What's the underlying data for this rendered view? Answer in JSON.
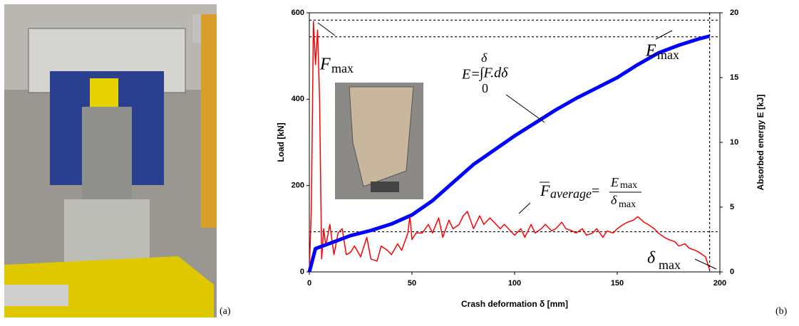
{
  "panel_labels": [
    "(a)",
    "(b)"
  ],
  "chart_data": {
    "type": "line",
    "xlabel": "Crash deformation δ [mm]",
    "ylabel": "Load [kN]",
    "y2label": "Absorbed energy E [kJ]",
    "xlim": [
      0,
      200
    ],
    "xticks": [
      0,
      50,
      100,
      150,
      200
    ],
    "ylim": [
      0,
      600
    ],
    "yticks": [
      0,
      200,
      400,
      600
    ],
    "y2lim": [
      0,
      20
    ],
    "y2ticks": [
      0,
      5,
      10,
      15,
      20
    ],
    "series": [
      {
        "color": "#ff0000",
        "axis": "y",
        "x": [
          0,
          1,
          2,
          3,
          4,
          5,
          6,
          7,
          8,
          10,
          12,
          14,
          16,
          18,
          20,
          22,
          25,
          28,
          30,
          33,
          35,
          38,
          40,
          43,
          45,
          48,
          49,
          50,
          52,
          55,
          58,
          60,
          63,
          65,
          68,
          70,
          73,
          75,
          77,
          80,
          83,
          85,
          88,
          90,
          93,
          95,
          98,
          100,
          103,
          105,
          108,
          110,
          113,
          115,
          118,
          120,
          123,
          125,
          128,
          130,
          133,
          135,
          138,
          140,
          143,
          145,
          148,
          150,
          153,
          155,
          158,
          160,
          163,
          165,
          168,
          170,
          173,
          175,
          178,
          180,
          183,
          185,
          188,
          190,
          193,
          195
        ],
        "values": [
          0,
          150,
          580,
          480,
          560,
          400,
          30,
          100,
          60,
          110,
          40,
          90,
          100,
          40,
          45,
          60,
          35,
          80,
          30,
          25,
          60,
          50,
          40,
          65,
          50,
          90,
          130,
          75,
          90,
          90,
          110,
          90,
          125,
          80,
          120,
          100,
          110,
          130,
          140,
          100,
          130,
          110,
          125,
          115,
          100,
          110,
          95,
          85,
          100,
          80,
          110,
          90,
          100,
          110,
          95,
          100,
          115,
          100,
          95,
          90,
          100,
          85,
          90,
          100,
          80,
          95,
          90,
          100,
          110,
          115,
          120,
          128,
          115,
          110,
          100,
          90,
          80,
          75,
          70,
          60,
          65,
          55,
          50,
          45,
          35,
          5
        ]
      },
      {
        "color": "#0000ff",
        "axis": "y2",
        "x": [
          0,
          3,
          10,
          20,
          30,
          40,
          50,
          60,
          70,
          80,
          90,
          100,
          110,
          120,
          130,
          140,
          150,
          160,
          170,
          180,
          190,
          195
        ],
        "values": [
          0,
          1.8,
          2.2,
          2.8,
          3.2,
          3.7,
          4.4,
          5.5,
          6.9,
          8.3,
          9.4,
          10.5,
          11.5,
          12.5,
          13.4,
          14.2,
          15.0,
          16.0,
          16.9,
          17.5,
          18.0,
          18.2
        ]
      }
    ],
    "hlines": [
      583,
      93
    ],
    "h2lines": [
      18.15
    ],
    "vlines": [
      195
    ],
    "annotations": {
      "fmax": {
        "base": "F",
        "sub": "max"
      },
      "emax": {
        "base": "E",
        "sub": "max"
      },
      "dmax": {
        "base": "δ",
        "sub": "max"
      },
      "integral": {
        "lhs": "E=",
        "upper": "δ",
        "body": "∫F.dδ",
        "lower": "0"
      },
      "average": {
        "base": "F",
        "sub": "average",
        "eq": "=",
        "num_base": "E",
        "num_sub": "max",
        "den_base": "δ",
        "den_sub": "max"
      }
    }
  }
}
